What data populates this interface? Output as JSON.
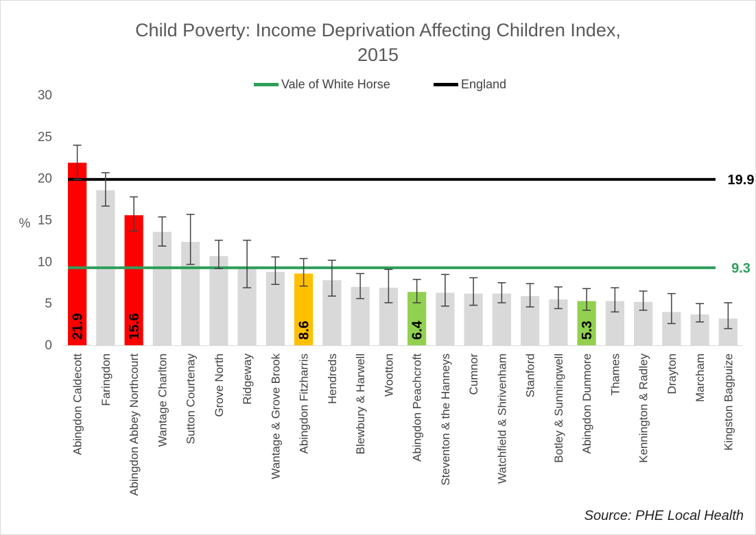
{
  "chart_data": {
    "type": "bar",
    "title": "Child Poverty:  Income Deprivation Affecting Children Index, 2015",
    "title_lines": [
      "Child Poverty:  Income Deprivation Affecting Children Index,",
      "2015"
    ],
    "ylabel": "%",
    "xlabel": "",
    "ylim": [
      0,
      30
    ],
    "yticks": [
      0,
      5,
      10,
      15,
      20,
      25,
      30
    ],
    "grid": false,
    "legend_position": "top",
    "categories": [
      "Abingdon Caldecott",
      "Faringdon",
      "Abingdon Abbey Northcourt",
      "Wantage Charlton",
      "Sutton Courtenay",
      "Grove North",
      "Ridgeway",
      "Wantage & Grove Brook",
      "Abingdon Fitzharris",
      "Hendreds",
      "Blewbury & Harwell",
      "Wootton",
      "Abingdon Peachcroft",
      "Steventon & the Hanneys",
      "Cumnor",
      "Watchfield & Shrivenham",
      "Stanford",
      "Botley & Sunningwell",
      "Abingdon Dunmore",
      "Thames",
      "Kennington & Radley",
      "Drayton",
      "Marcham",
      "Kingston Bagpuize"
    ],
    "values": [
      21.9,
      18.6,
      15.6,
      13.6,
      12.4,
      10.7,
      9.3,
      8.8,
      8.6,
      7.8,
      7.0,
      6.9,
      6.4,
      6.3,
      6.2,
      6.2,
      5.9,
      5.5,
      5.3,
      5.3,
      5.2,
      4.0,
      3.7,
      3.2
    ],
    "error_low": [
      19.9,
      16.7,
      13.7,
      11.9,
      9.7,
      9.2,
      6.9,
      7.3,
      7.1,
      5.9,
      5.6,
      5.1,
      5.1,
      4.7,
      4.8,
      5.1,
      4.6,
      4.4,
      4.2,
      4.0,
      4.2,
      2.6,
      2.8,
      2.0
    ],
    "error_high": [
      24.0,
      20.7,
      17.8,
      15.4,
      15.7,
      12.6,
      12.6,
      10.6,
      10.4,
      10.2,
      8.6,
      9.1,
      7.9,
      8.5,
      8.1,
      7.5,
      7.4,
      7.0,
      6.8,
      6.9,
      6.5,
      6.2,
      5.0,
      5.1
    ],
    "colors": [
      "#ff0000",
      "#d9d9d9",
      "#ff0000",
      "#d9d9d9",
      "#d9d9d9",
      "#d9d9d9",
      "#d9d9d9",
      "#d9d9d9",
      "#ffc000",
      "#d9d9d9",
      "#d9d9d9",
      "#d9d9d9",
      "#92d050",
      "#d9d9d9",
      "#d9d9d9",
      "#d9d9d9",
      "#d9d9d9",
      "#d9d9d9",
      "#92d050",
      "#d9d9d9",
      "#d9d9d9",
      "#d9d9d9",
      "#d9d9d9",
      "#d9d9d9"
    ],
    "bar_labels": [
      "21.9",
      "",
      "15.6",
      "",
      "",
      "",
      "",
      "",
      "8.6",
      "",
      "",
      "",
      "6.4",
      "",
      "",
      "",
      "",
      "",
      "5.3",
      "",
      "",
      "",
      "",
      ""
    ],
    "reference_lines": [
      {
        "name": "Vale of White Horse",
        "value": 9.3,
        "label": "9.3",
        "color": "#2e9e5b",
        "label_color": "#2e9e5b"
      },
      {
        "name": "England",
        "value": 19.9,
        "label": "19.9",
        "color": "#000000",
        "label_color": "#000000"
      }
    ]
  },
  "source": "Source: PHE Local Health"
}
